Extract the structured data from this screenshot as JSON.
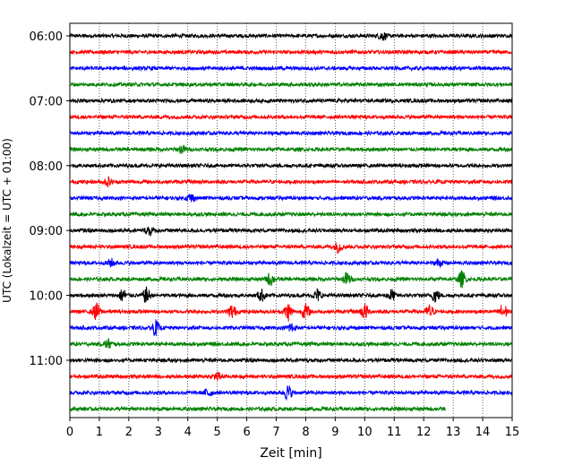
{
  "chart_data": {
    "type": "line",
    "xlabel": "Zeit  [min]",
    "ylabel": "UTC (Lokalzeit = UTC + 01:00)",
    "xlim": [
      0,
      15
    ],
    "x_ticks": [
      0,
      1,
      2,
      3,
      4,
      5,
      6,
      7,
      8,
      9,
      10,
      11,
      12,
      13,
      14,
      15
    ],
    "y_tick_labels": [
      "06:00",
      "07:00",
      "08:00",
      "09:00",
      "10:00",
      "11:00"
    ],
    "rows_per_hour": 4,
    "minutes_per_row": 15,
    "row_start_first": "06:00",
    "row_count": 24,
    "last_row_end_minute": 12.75,
    "vertical_grid": "dotted",
    "colors": [
      "#000000",
      "#ff0000",
      "#0000ff",
      "#008000"
    ],
    "events": [
      {
        "row": 0,
        "minute": 10.6,
        "amp": 0.5
      },
      {
        "row": 7,
        "minute": 3.8,
        "amp": 0.45
      },
      {
        "row": 9,
        "minute": 1.3,
        "amp": 0.5
      },
      {
        "row": 10,
        "minute": 4.1,
        "amp": 0.55
      },
      {
        "row": 12,
        "minute": 2.7,
        "amp": 0.6
      },
      {
        "row": 13,
        "minute": 9.1,
        "amp": 0.6
      },
      {
        "row": 14,
        "minute": 1.4,
        "amp": 0.45
      },
      {
        "row": 14,
        "minute": 12.5,
        "amp": 0.45
      },
      {
        "row": 15,
        "minute": 6.8,
        "amp": 0.75
      },
      {
        "row": 15,
        "minute": 9.4,
        "amp": 0.8
      },
      {
        "row": 15,
        "minute": 13.3,
        "amp": 0.95
      },
      {
        "row": 16,
        "minute": 1.8,
        "amp": 0.75
      },
      {
        "row": 16,
        "minute": 2.6,
        "amp": 0.9
      },
      {
        "row": 16,
        "minute": 6.5,
        "amp": 0.7
      },
      {
        "row": 16,
        "minute": 8.4,
        "amp": 0.7
      },
      {
        "row": 16,
        "minute": 10.9,
        "amp": 0.7
      },
      {
        "row": 16,
        "minute": 12.4,
        "amp": 0.8
      },
      {
        "row": 17,
        "minute": 0.9,
        "amp": 1.0
      },
      {
        "row": 17,
        "minute": 5.5,
        "amp": 0.85
      },
      {
        "row": 17,
        "minute": 7.4,
        "amp": 1.1
      },
      {
        "row": 17,
        "minute": 8.0,
        "amp": 0.9
      },
      {
        "row": 17,
        "minute": 10.0,
        "amp": 0.9
      },
      {
        "row": 17,
        "minute": 12.2,
        "amp": 0.8
      },
      {
        "row": 17,
        "minute": 14.7,
        "amp": 1.0
      },
      {
        "row": 18,
        "minute": 2.9,
        "amp": 0.9
      },
      {
        "row": 18,
        "minute": 7.5,
        "amp": 0.6
      },
      {
        "row": 19,
        "minute": 1.3,
        "amp": 0.55
      },
      {
        "row": 21,
        "minute": 5.0,
        "amp": 0.5
      },
      {
        "row": 22,
        "minute": 4.7,
        "amp": 0.55
      },
      {
        "row": 22,
        "minute": 7.4,
        "amp": 0.9
      }
    ]
  }
}
